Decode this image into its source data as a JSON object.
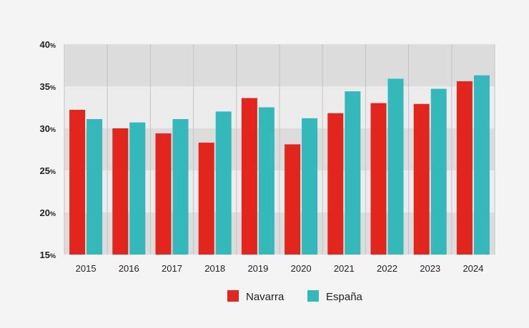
{
  "chart_data": {
    "type": "bar",
    "categories": [
      "2015",
      "2016",
      "2017",
      "2018",
      "2019",
      "2020",
      "2021",
      "2022",
      "2023",
      "2024"
    ],
    "series": [
      {
        "name": "Navarra",
        "color": "#e2261e",
        "values": [
          32.2,
          30.0,
          29.4,
          28.3,
          33.6,
          28.1,
          31.8,
          33.0,
          32.9,
          35.6
        ]
      },
      {
        "name": "España",
        "color": "#34b8ba",
        "values": [
          31.1,
          30.7,
          31.1,
          32.0,
          32.5,
          31.2,
          34.4,
          35.9,
          34.7,
          36.3
        ]
      }
    ],
    "ylim": [
      15,
      40
    ],
    "yticks": [
      {
        "value": 15,
        "label": "15",
        "unit": "%"
      },
      {
        "value": 20,
        "label": "20",
        "unit": "%"
      },
      {
        "value": 25,
        "label": "25",
        "unit": "%"
      },
      {
        "value": 30,
        "label": "30",
        "unit": "%"
      },
      {
        "value": 35,
        "label": "35",
        "unit": "%"
      },
      {
        "value": 40,
        "label": "40",
        "unit": "%"
      }
    ],
    "title": "",
    "xlabel": "",
    "ylabel": "",
    "grid": true,
    "legend_position": "bottom-center",
    "background_bands": [
      "#dcdcdc",
      "#ececec"
    ]
  }
}
